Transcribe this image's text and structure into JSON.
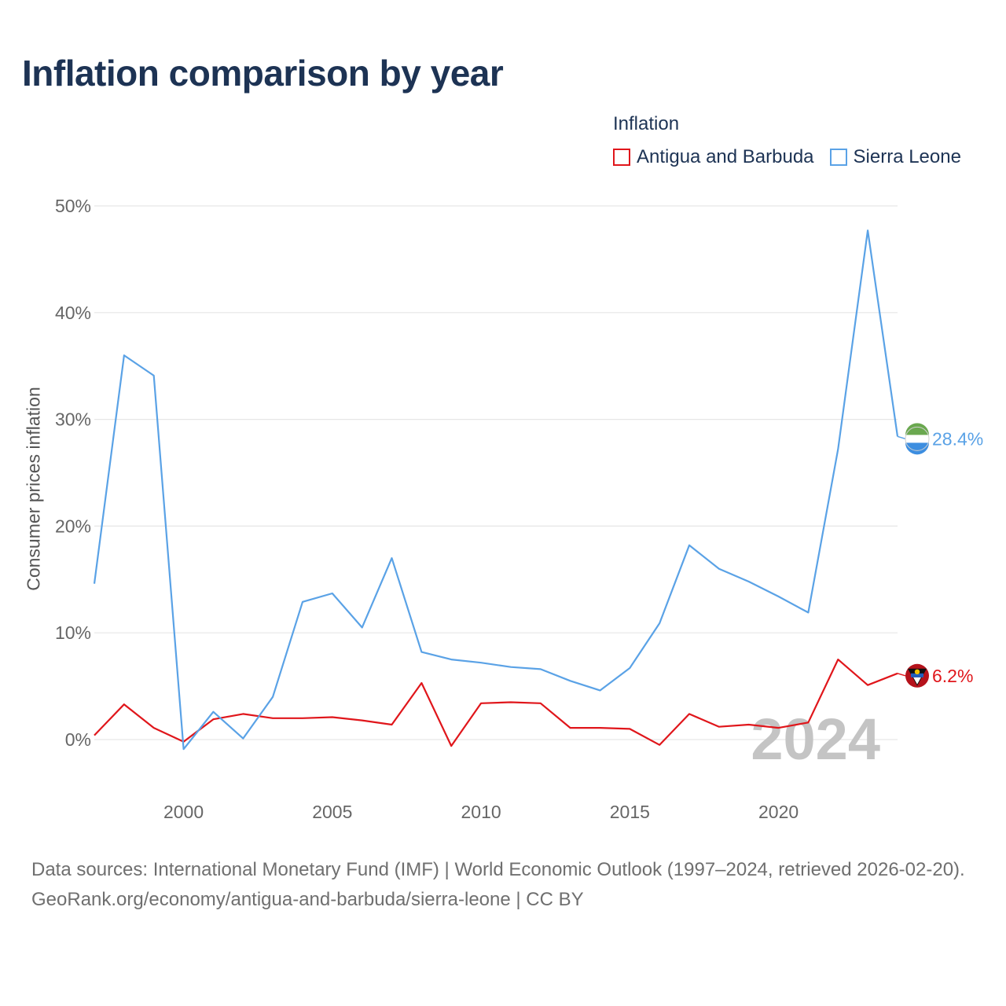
{
  "title": "Inflation comparison by year",
  "legend": {
    "title": "Inflation",
    "items": [
      {
        "label": "Antigua and Barbuda",
        "color": "#e0161b"
      },
      {
        "label": "Sierra Leone",
        "color": "#5aa2e6"
      }
    ]
  },
  "year_watermark": "2024",
  "source": {
    "line1": "Data sources: International Monetary Fund (IMF) | World Economic Outlook (1997–2024, retrieved 2026-02-20).",
    "line2": "GeoRank.org/economy/antigua-and-barbuda/sierra-leone | CC BY"
  },
  "chart_data": {
    "type": "line",
    "title": "Inflation comparison by year",
    "xlabel": "",
    "ylabel": "Consumer prices inflation",
    "xlim": [
      1997,
      2024
    ],
    "ylim": [
      -5,
      50
    ],
    "x_ticks": [
      2000,
      2005,
      2010,
      2015,
      2020
    ],
    "y_ticks": [
      0,
      10,
      20,
      30,
      40,
      50
    ],
    "y_tick_labels": [
      "0%",
      "10%",
      "20%",
      "30%",
      "40%",
      "50%"
    ],
    "grid": true,
    "legend_position": "top-right",
    "x": [
      1997,
      1998,
      1999,
      2000,
      2001,
      2002,
      2003,
      2004,
      2005,
      2006,
      2007,
      2008,
      2009,
      2010,
      2011,
      2012,
      2013,
      2014,
      2015,
      2016,
      2017,
      2018,
      2019,
      2020,
      2021,
      2022,
      2023,
      2024
    ],
    "series": [
      {
        "name": "Antigua and Barbuda",
        "color": "#e0161b",
        "values": [
          0.4,
          3.3,
          1.1,
          -0.2,
          1.9,
          2.4,
          2.0,
          2.0,
          2.1,
          1.8,
          1.4,
          5.3,
          -0.6,
          3.4,
          3.5,
          3.4,
          1.1,
          1.1,
          1.0,
          -0.5,
          2.4,
          1.2,
          1.4,
          1.1,
          1.6,
          7.5,
          5.1,
          6.2
        ],
        "end_label": "6.2%"
      },
      {
        "name": "Sierra Leone",
        "color": "#5aa2e6",
        "values": [
          14.6,
          36.0,
          34.1,
          -0.9,
          2.6,
          0.1,
          4.0,
          12.9,
          13.7,
          10.5,
          17.0,
          8.2,
          7.5,
          7.2,
          6.8,
          6.6,
          5.5,
          4.6,
          6.7,
          10.9,
          18.2,
          16.0,
          14.8,
          13.4,
          11.9,
          27.2,
          47.7,
          28.4
        ],
        "end_label": "28.4%"
      }
    ]
  }
}
